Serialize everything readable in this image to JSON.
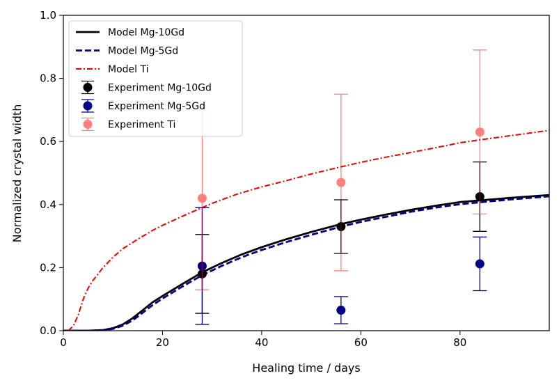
{
  "chart_data": {
    "type": "line",
    "title": "",
    "xlabel": "Healing time / days",
    "ylabel": "Normalized crystal width",
    "xlim": [
      0,
      98
    ],
    "ylim": [
      0,
      1.0
    ],
    "xticks": [
      0,
      20,
      40,
      60,
      80
    ],
    "yticks": [
      0.0,
      0.2,
      0.4,
      0.6,
      0.8,
      1.0
    ],
    "xtick_labels": [
      "0",
      "20",
      "40",
      "60",
      "80"
    ],
    "ytick_labels": [
      "0.0",
      "0.2",
      "0.4",
      "0.6",
      "0.8",
      "1.0"
    ],
    "legend_location": "top-left",
    "model_series": [
      {
        "name": "Model Mg-10Gd",
        "color": "#000000",
        "style": "solid",
        "x": [
          0,
          5,
          8,
          10,
          12,
          14,
          16,
          18,
          20,
          24,
          28,
          32,
          36,
          40,
          45,
          50,
          56,
          60,
          65,
          70,
          75,
          80,
          84,
          90,
          98
        ],
        "y": [
          0.0,
          0.0,
          0.002,
          0.008,
          0.02,
          0.04,
          0.065,
          0.09,
          0.11,
          0.148,
          0.185,
          0.215,
          0.242,
          0.265,
          0.29,
          0.313,
          0.338,
          0.352,
          0.368,
          0.383,
          0.396,
          0.408,
          0.413,
          0.421,
          0.43
        ]
      },
      {
        "name": "Model Mg-5Gd",
        "color": "#00008b",
        "style": "dashed",
        "x": [
          0,
          5,
          8,
          10,
          12,
          14,
          16,
          18,
          20,
          24,
          28,
          32,
          36,
          40,
          45,
          50,
          56,
          60,
          65,
          70,
          75,
          80,
          84,
          90,
          98
        ],
        "y": [
          0.0,
          0.0,
          0.002,
          0.006,
          0.016,
          0.033,
          0.057,
          0.081,
          0.102,
          0.14,
          0.176,
          0.206,
          0.233,
          0.256,
          0.281,
          0.304,
          0.33,
          0.345,
          0.361,
          0.377,
          0.39,
          0.401,
          0.407,
          0.416,
          0.426
        ]
      },
      {
        "name": "Model Ti",
        "color": "#ee0000",
        "style": "dashdot",
        "x": [
          1,
          2,
          3,
          4,
          5,
          6,
          8,
          10,
          12,
          15,
          18,
          20,
          25,
          30,
          35,
          40,
          45,
          50,
          55,
          60,
          65,
          70,
          75,
          80,
          84,
          90,
          98
        ],
        "y": [
          0.0,
          0.015,
          0.05,
          0.1,
          0.135,
          0.16,
          0.2,
          0.233,
          0.26,
          0.29,
          0.318,
          0.334,
          0.37,
          0.404,
          0.433,
          0.456,
          0.476,
          0.497,
          0.516,
          0.534,
          0.55,
          0.565,
          0.58,
          0.596,
          0.605,
          0.618,
          0.635
        ]
      }
    ],
    "experiment_series": [
      {
        "name": "Experiment Mg-10Gd",
        "color": "#000000",
        "alpha": 1,
        "x": [
          28,
          56,
          84
        ],
        "y": [
          0.18,
          0.33,
          0.425
        ],
        "yerr": [
          0.125,
          0.085,
          0.11
        ]
      },
      {
        "name": "Experiment Mg-5Gd",
        "color": "#00008b",
        "alpha": 1,
        "x": [
          28,
          56,
          84
        ],
        "y": [
          0.205,
          0.065,
          0.212
        ],
        "yerr": [
          0.185,
          0.043,
          0.085
        ]
      },
      {
        "name": "Experiment Ti",
        "color": "#ff0000",
        "alpha": 0.5,
        "x": [
          28,
          56,
          84
        ],
        "y": [
          0.42,
          0.47,
          0.63
        ],
        "yerr": [
          0.29,
          0.28,
          0.26
        ]
      }
    ]
  }
}
